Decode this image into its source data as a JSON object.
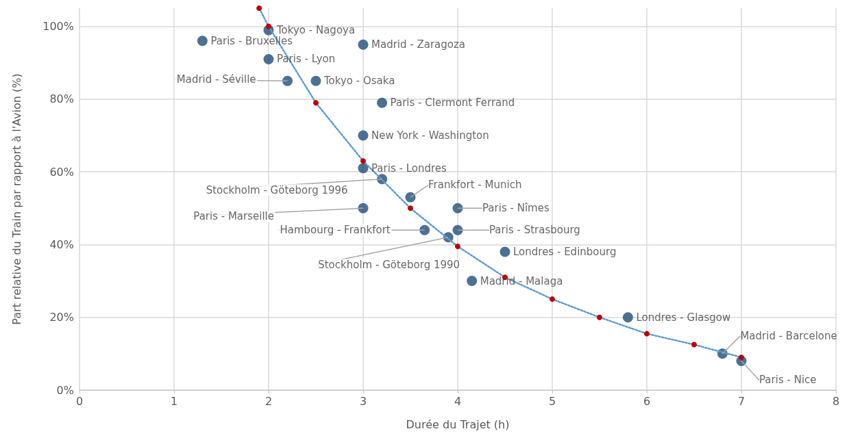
{
  "chart_data": {
    "type": "scatter",
    "xlabel": "Durée du Trajet (h)",
    "ylabel": "Part relative du Train par rapport à l'Avion (%)",
    "xlim": [
      0,
      8
    ],
    "xticks": [
      0,
      1,
      2,
      3,
      4,
      5,
      6,
      7,
      8
    ],
    "ylim": [
      0,
      105
    ],
    "yticks": [
      {
        "value": 0,
        "label": "0%"
      },
      {
        "value": 20,
        "label": "20%"
      },
      {
        "value": 40,
        "label": "40%"
      },
      {
        "value": 60,
        "label": "60%"
      },
      {
        "value": 80,
        "label": "80%"
      },
      {
        "value": 100,
        "label": "100%"
      }
    ],
    "grid": true,
    "marker": "circle",
    "series": [
      {
        "color": "#1f4e79",
        "x": [
          1.3,
          2.0,
          2.0,
          2.2,
          2.5,
          3.0,
          3.2,
          3.0,
          3.0,
          3.2,
          3.5,
          3.0,
          4.0,
          3.65,
          4.0,
          3.9,
          4.5,
          4.15,
          5.8,
          6.8,
          7.0
        ],
        "values": [
          96,
          99,
          91,
          85,
          85,
          95,
          79,
          70,
          61,
          58,
          53,
          50,
          50,
          44,
          44,
          42,
          38,
          30,
          20,
          10,
          8
        ]
      },
      {
        "type": "line",
        "color": "#c00000",
        "line_style": "dotted",
        "x": [
          1.9,
          2.0,
          2.5,
          3.0,
          3.5,
          4.0,
          4.5,
          5.0,
          5.5,
          6.0,
          6.5,
          7.0
        ],
        "values": [
          105,
          100,
          79,
          63,
          50,
          39.5,
          31,
          25,
          20,
          15.5,
          12.5,
          9
        ]
      }
    ],
    "annotations": [
      {
        "text": "Paris - Bruxelles",
        "x": 1.3,
        "y": 96
      },
      {
        "text": "Tokyo - Nagoya",
        "x": 2.0,
        "y": 99
      },
      {
        "text": "Paris - Lyon",
        "x": 2.0,
        "y": 91
      },
      {
        "text": "Madrid - Séville",
        "x": 2.2,
        "y": 85
      },
      {
        "text": "Tokyo - Osaka",
        "x": 2.5,
        "y": 85
      },
      {
        "text": "Madrid - Zaragoza",
        "x": 3.0,
        "y": 95
      },
      {
        "text": "Paris - Clermont Ferrand",
        "x": 3.2,
        "y": 79
      },
      {
        "text": "New York - Washington",
        "x": 3.0,
        "y": 70
      },
      {
        "text": "Paris - Londres",
        "x": 3.0,
        "y": 61
      },
      {
        "text": "Stockholm - Göteborg 1996",
        "x": 3.2,
        "y": 58
      },
      {
        "text": "Frankfort - Munich",
        "x": 3.5,
        "y": 53
      },
      {
        "text": "Paris - Marseille",
        "x": 3.0,
        "y": 50
      },
      {
        "text": "Paris - Nîmes",
        "x": 4.0,
        "y": 50
      },
      {
        "text": "Hambourg - Frankfort",
        "x": 3.65,
        "y": 44
      },
      {
        "text": "Paris - Strasbourg",
        "x": 4.0,
        "y": 44
      },
      {
        "text": "Stockholm - Göteborg 1990",
        "x": 3.9,
        "y": 42
      },
      {
        "text": "Londres - Edinbourg",
        "x": 4.5,
        "y": 38
      },
      {
        "text": "Madrid - Malaga",
        "x": 4.15,
        "y": 30
      },
      {
        "text": "Londres - Glasgow",
        "x": 5.8,
        "y": 20
      },
      {
        "text": "Madrid - Barcelone",
        "x": 6.8,
        "y": 10
      },
      {
        "text": "Paris - Nice",
        "x": 7.0,
        "y": 8
      }
    ]
  }
}
